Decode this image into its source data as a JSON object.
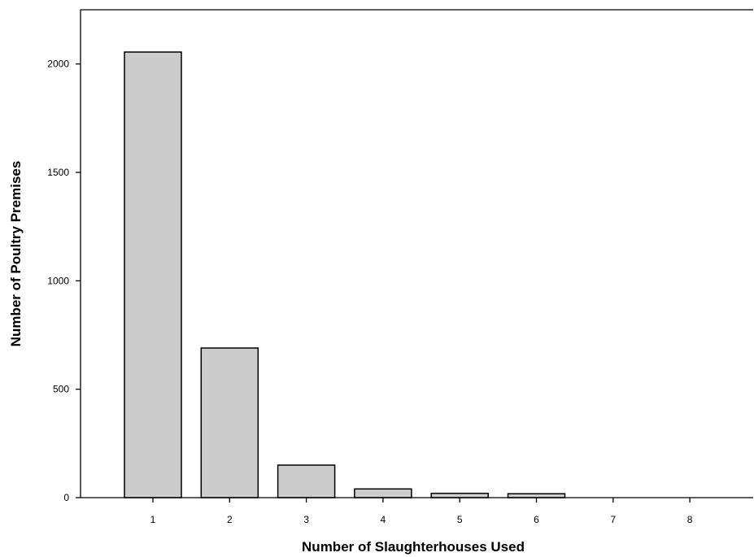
{
  "chart_data": {
    "type": "bar",
    "xlabel": "Number of Slaughterhouses Used",
    "ylabel": "Number of Poultry Premises",
    "categories": [
      "1",
      "2",
      "3",
      "4",
      "5",
      "6",
      "7",
      "8"
    ],
    "values": [
      2055,
      690,
      150,
      40,
      20,
      18,
      0,
      0
    ],
    "ylim": [
      0,
      2250
    ],
    "yticks": [
      0,
      500,
      1000,
      1500,
      2000
    ],
    "ytick_labels": [
      "0",
      "500",
      "1000",
      "1500",
      "2000"
    ],
    "grid": false,
    "legend": "none",
    "colors": {
      "bar_fill": "#cccccc",
      "bar_stroke": "#000000",
      "axis": "#000000"
    }
  }
}
